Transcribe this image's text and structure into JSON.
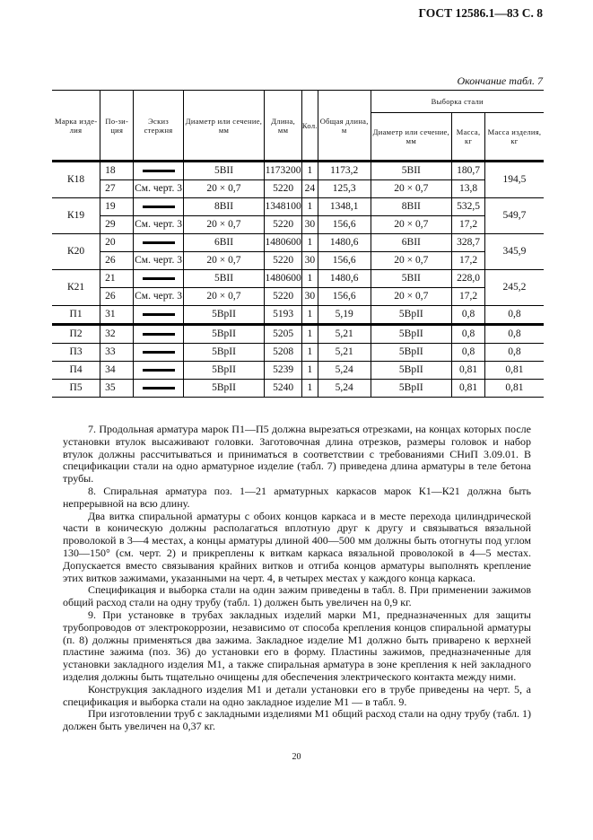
{
  "header": {
    "doc_id": "ГОСТ 12586.1—83 С. 8",
    "continuation": "Окончание табл. 7"
  },
  "table": {
    "headers": {
      "mark": "Марка изде­лия",
      "position": "По-зи-ция",
      "sketch": "Эскиз стержня",
      "diameter": "Диаметр или сечение, мм",
      "length": "Длина, мм",
      "qty": "Кол.",
      "total_length": "Общая длина, м",
      "selection": "Выборка стали",
      "sel_diameter": "Диаметр или сечение, мм",
      "sel_mass": "Масса, кг",
      "item_mass": "Масса изделия, кг"
    },
    "groups": [
      {
        "mark": "К18",
        "item_mass": "194,5",
        "rows": [
          {
            "pos": "18",
            "sketch": "bar",
            "diameter": "5ВII",
            "length": "1173200",
            "qty": "1",
            "total": "1173,2",
            "sel_d": "5ВII",
            "mass": "180,7"
          },
          {
            "pos": "27",
            "sketch": "См. черт. 3",
            "diameter": "20 × 0,7",
            "length": "5220",
            "qty": "24",
            "total": "125,3",
            "sel_d": "20 × 0,7",
            "mass": "13,8"
          }
        ]
      },
      {
        "mark": "К19",
        "item_mass": "549,7",
        "rows": [
          {
            "pos": "19",
            "sketch": "bar",
            "diameter": "8ВII",
            "length": "1348100",
            "qty": "1",
            "total": "1348,1",
            "sel_d": "8ВII",
            "mass": "532,5"
          },
          {
            "pos": "29",
            "sketch": "См. черт. 3",
            "diameter": "20 × 0,7",
            "length": "5220",
            "qty": "30",
            "total": "156,6",
            "sel_d": "20 × 0,7",
            "mass": "17,2"
          }
        ]
      },
      {
        "mark": "К20",
        "item_mass": "345,9",
        "rows": [
          {
            "pos": "20",
            "sketch": "bar",
            "diameter": "6ВII",
            "length": "1480600",
            "qty": "1",
            "total": "1480,6",
            "sel_d": "6ВII",
            "mass": "328,7"
          },
          {
            "pos": "26",
            "sketch": "См. черт. 3",
            "diameter": "20 × 0,7",
            "length": "5220",
            "qty": "30",
            "total": "156,6",
            "sel_d": "20 × 0,7",
            "mass": "17,2"
          }
        ]
      },
      {
        "mark": "К21",
        "item_mass": "245,2",
        "rows": [
          {
            "pos": "21",
            "sketch": "bar",
            "diameter": "5ВII",
            "length": "1480600",
            "qty": "1",
            "total": "1480,6",
            "sel_d": "5ВII",
            "mass": "228,0"
          },
          {
            "pos": "26",
            "sketch": "См. черт. 3",
            "diameter": "20 × 0,7",
            "length": "5220",
            "qty": "30",
            "total": "156,6",
            "sel_d": "20 × 0,7",
            "mass": "17,2"
          }
        ]
      },
      {
        "mark": "П1",
        "item_mass": "0,8",
        "rows": [
          {
            "pos": "31",
            "sketch": "bar",
            "diameter": "5ВрII",
            "length": "5193",
            "qty": "1",
            "total": "5,19",
            "sel_d": "5ВрII",
            "mass": "0,8"
          }
        ]
      },
      {
        "mark": "П2",
        "item_mass": "0,8",
        "rows": [
          {
            "pos": "32",
            "sketch": "bar",
            "diameter": "5ВрII",
            "length": "5205",
            "qty": "1",
            "total": "5,21",
            "sel_d": "5ВрII",
            "mass": "0,8"
          }
        ]
      },
      {
        "mark": "П3",
        "item_mass": "0,8",
        "rows": [
          {
            "pos": "33",
            "sketch": "bar",
            "diameter": "5ВрII",
            "length": "5208",
            "qty": "1",
            "total": "5,21",
            "sel_d": "5ВрII",
            "mass": "0,8"
          }
        ]
      },
      {
        "mark": "П4",
        "item_mass": "0,81",
        "rows": [
          {
            "pos": "34",
            "sketch": "bar",
            "diameter": "5ВрII",
            "length": "5239",
            "qty": "1",
            "total": "5,24",
            "sel_d": "5ВрII",
            "mass": "0,81"
          }
        ]
      },
      {
        "mark": "П5",
        "item_mass": "0,81",
        "rows": [
          {
            "pos": "35",
            "sketch": "bar",
            "diameter": "5ВрII",
            "length": "5240",
            "qty": "1",
            "total": "5,24",
            "sel_d": "5ВрII",
            "mass": "0,81"
          }
        ]
      }
    ]
  },
  "paragraphs": [
    "7. Продольная арматура марок П1—П5 должна вырезаться отрезками, на концах которых после установки втулок высаживают головки. Заготовочная длина отрезков, размеры головок и набор втулок должны рассчитываться и приниматься в соответствии с требованиями СНиП 3.09.01. В спецификации стали на одно арматурное изделие (табл. 7) приведена длина арматуры в теле бетона трубы.",
    "8. Спиральная арматура поз. 1—21 арматурных каркасов марок К1—К21 должна быть непрерывной на всю длину.",
    "Два витка спиральной арматуры с обоих концов каркаса и в месте перехода цилиндрической части в коническую должны располагаться вплотную друг к другу и связываться вязальной проволокой в 3—4 местах, а концы арматуры длиной 400—500 мм должны быть отогнуты под углом 130—150° (см. черт. 2) и прикреплены к виткам каркаса вязальной проволокой в 4—5 местах. Допускается вместо связывания крайних витков и отгиба концов арматуры выполнять крепление этих витков зажимами, указанными на черт. 4, в четырех местах у каждого конца каркаса.",
    "Спецификация и выборка стали на один зажим приведены в табл. 8. При применении зажимов общий расход стали на одну трубу (табл. 1) должен быть увеличен на 0,9 кг.",
    "9. При установке в трубах закладных изделий марки М1, предназначенных для защиты трубопроводов от электрокоррозии, независимо от способа крепления концов спиральной арматуры (п. 8) должны применяться два зажима. Закладное изделие М1 должно быть приварено к верхней пластине зажима (поз. 36) до установки его в форму. Пластины зажимов, предназначенные для установки закладного изделия М1, а также спиральная арматура в зоне крепления к ней закладного изделия должны быть тщательно очищены для обеспечения электрического контакта между ними.",
    "Конструкция закладного изделия М1 и детали установки его в трубе приведены на черт. 5, а спецификация и выборка стали на одно закладное изделие М1 — в табл. 9.",
    "При изготовлении труб с закладными изделиями М1 общий расход стали на одну трубу (табл. 1) должен быть увеличен на 0,37 кг."
  ],
  "page_number": "20"
}
